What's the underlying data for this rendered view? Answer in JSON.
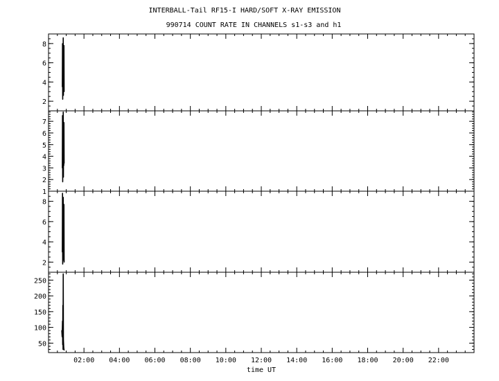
{
  "title": {
    "line1": "INTERBALL-Tail RF15-I HARD/SOFT X-RAY EMISSION",
    "line2": "990714  COUNT RATE IN CHANNELS s1-s3 and h1"
  },
  "chart_data": [
    {
      "type": "line",
      "panel": "s1",
      "xlabel": "",
      "ylabel": "",
      "xlim": [
        0,
        24
      ],
      "ylim": [
        1,
        9
      ],
      "yticks": [
        2,
        4,
        6,
        8
      ],
      "x": [
        0.78,
        0.79,
        0.8,
        0.81,
        0.82,
        0.83,
        0.84,
        0.85,
        0.86,
        0.87,
        0.88
      ],
      "values": [
        3.5,
        8.0,
        2.2,
        7.2,
        3.1,
        8.6,
        2.6,
        6.5,
        4.0,
        7.8,
        3.0
      ]
    },
    {
      "type": "line",
      "panel": "s2",
      "xlabel": "",
      "ylabel": "",
      "xlim": [
        0,
        24
      ],
      "ylim": [
        1,
        7.9
      ],
      "yticks": [
        1,
        2,
        3,
        4,
        5,
        6,
        7
      ],
      "x": [
        0.78,
        0.79,
        0.8,
        0.81,
        0.82,
        0.83,
        0.84,
        0.85,
        0.86,
        0.87,
        0.88
      ],
      "values": [
        3.0,
        7.5,
        1.8,
        6.4,
        2.6,
        7.8,
        2.2,
        5.6,
        3.2,
        6.9,
        3.4
      ]
    },
    {
      "type": "line",
      "panel": "s3",
      "xlabel": "",
      "ylabel": "",
      "xlim": [
        0,
        24
      ],
      "ylim": [
        1,
        9
      ],
      "yticks": [
        2,
        4,
        6,
        8
      ],
      "x": [
        0.78,
        0.79,
        0.8,
        0.81,
        0.82,
        0.83,
        0.84,
        0.85,
        0.86,
        0.87,
        0.88
      ],
      "values": [
        3.0,
        8.8,
        1.8,
        7.2,
        2.6,
        8.4,
        2.2,
        6.3,
        3.4,
        7.7,
        2.0
      ]
    },
    {
      "type": "line",
      "panel": "h1",
      "xlabel": "time UT",
      "ylabel": "",
      "xlim": [
        0,
        24
      ],
      "ylim": [
        20,
        275
      ],
      "yticks": [
        50,
        100,
        150,
        200,
        250
      ],
      "x": [
        0.75,
        0.77,
        0.79,
        0.8,
        0.81,
        0.82,
        0.83,
        0.84,
        0.86,
        0.88
      ],
      "values": [
        90,
        70,
        120,
        45,
        170,
        30,
        270,
        60,
        35,
        28
      ]
    }
  ],
  "xaxis": {
    "tick_labels": [
      "02:00",
      "04:00",
      "06:00",
      "08:00",
      "10:00",
      "12:00",
      "14:00",
      "16:00",
      "18:00",
      "20:00",
      "22:00"
    ],
    "tick_hours": [
      2,
      4,
      6,
      8,
      10,
      12,
      14,
      16,
      18,
      20,
      22
    ],
    "label": "time UT"
  }
}
